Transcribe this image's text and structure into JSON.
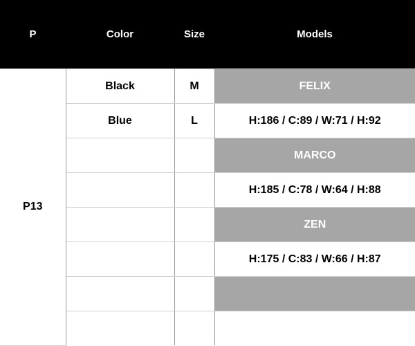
{
  "headers": [
    "P",
    "Color",
    "Size",
    "Models"
  ],
  "product": "P13",
  "rows": [
    {
      "color": "Black",
      "size": "M",
      "model": "FELIX",
      "highlight": true
    },
    {
      "color": "Blue",
      "size": "L",
      "model": "H:186 / C:89 / W:71 / H:92",
      "highlight": false
    },
    {
      "color": "",
      "size": "",
      "model": "MARCO",
      "highlight": true
    },
    {
      "color": "",
      "size": "",
      "model": "H:185 / C:78 / W:64 / H:88",
      "highlight": false
    },
    {
      "color": "",
      "size": "",
      "model": "ZEN",
      "highlight": true
    },
    {
      "color": "",
      "size": "",
      "model": "H:175 / C:83 / W:66 / H:87",
      "highlight": false
    },
    {
      "color": "",
      "size": "",
      "model": "",
      "highlight": true
    },
    {
      "color": "",
      "size": "",
      "model": "",
      "highlight": false
    }
  ],
  "colors": {
    "header_bg": "#000000",
    "highlight_bg": "#a6a6a6"
  }
}
